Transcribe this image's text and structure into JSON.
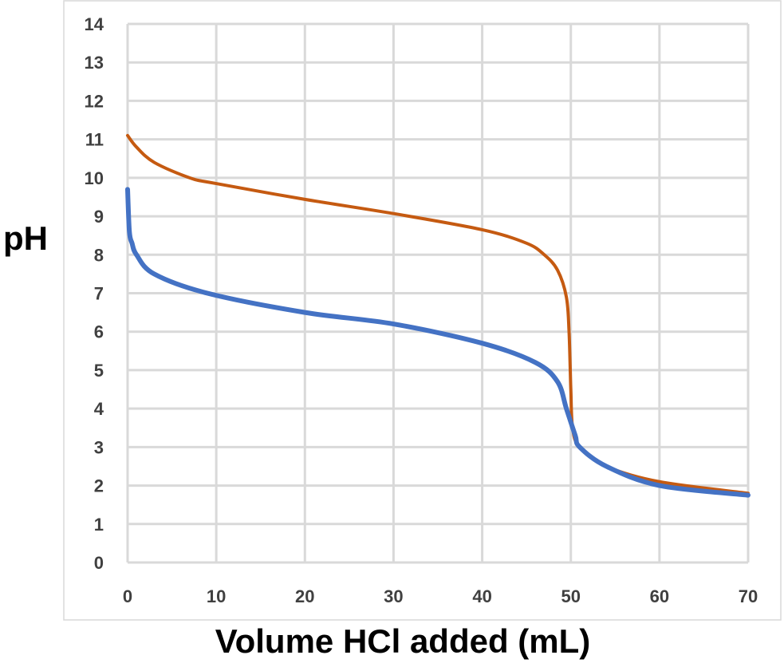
{
  "chart_data": {
    "type": "line",
    "title": "",
    "xlabel": "Volume HCl added (mL)",
    "ylabel": "pH",
    "xlim": [
      0,
      70
    ],
    "ylim": [
      0,
      14
    ],
    "xticks": [
      0,
      10,
      20,
      30,
      40,
      50,
      60,
      70
    ],
    "yticks": [
      0,
      1,
      2,
      3,
      4,
      5,
      6,
      7,
      8,
      9,
      10,
      11,
      12,
      13,
      14
    ],
    "grid": true,
    "legend": "none",
    "series": [
      {
        "color": "#c55a11",
        "x": [
          0,
          1,
          3,
          7,
          10,
          20,
          30,
          40,
          45,
          47,
          48.5,
          49.5,
          49.8,
          50,
          50.2,
          51,
          54,
          60,
          70
        ],
        "y": [
          11.1,
          10.8,
          10.4,
          10.0,
          9.85,
          9.44,
          9.07,
          8.65,
          8.3,
          8.0,
          7.6,
          6.9,
          6.0,
          4.5,
          3.5,
          3.0,
          2.5,
          2.1,
          1.8
        ]
      },
      {
        "color": "#4472c4",
        "x": [
          0,
          0.2,
          0.5,
          1,
          3,
          9,
          20,
          30,
          40,
          46,
          48.5,
          49.5,
          50.5,
          51,
          54,
          60,
          70
        ],
        "y": [
          9.7,
          8.6,
          8.3,
          8.0,
          7.5,
          7.0,
          6.5,
          6.2,
          5.7,
          5.2,
          4.7,
          4.0,
          3.3,
          3.0,
          2.5,
          2.0,
          1.75
        ]
      }
    ]
  }
}
